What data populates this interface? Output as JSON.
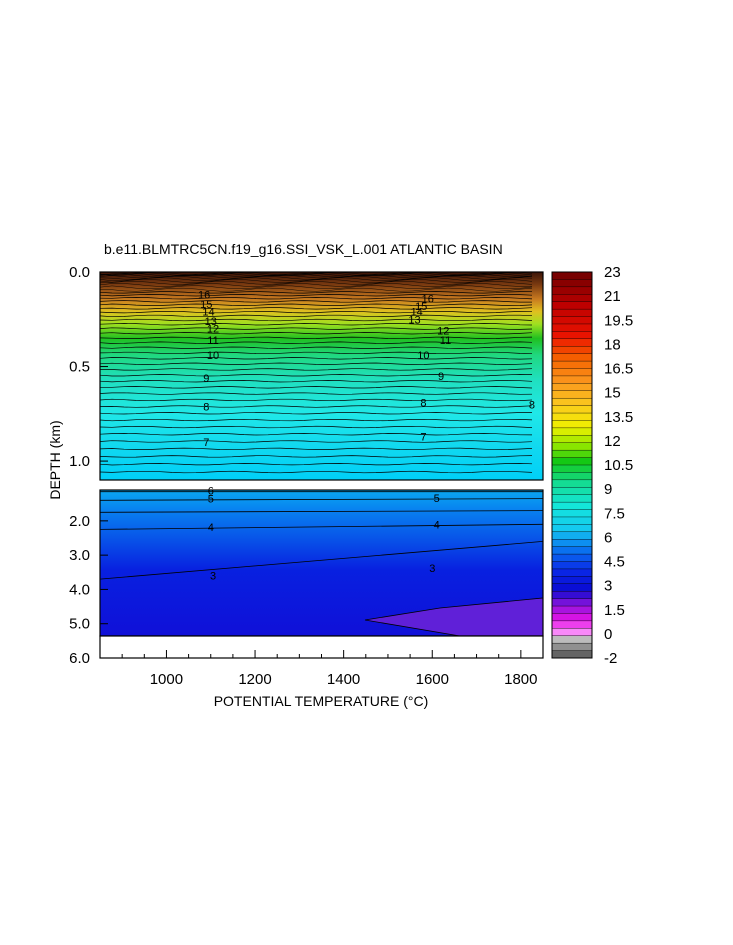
{
  "chart_data": {
    "type": "heatmap",
    "title": "b.e11.BLMTRC5CN.f19_g16.SSI_VSK_L.001 ATLANTIC BASIN",
    "xlabel": "POTENTIAL TEMPERATURE (°C)",
    "ylabel": "DEPTH (km)",
    "x_ticks": [
      "1000",
      "1200",
      "1400",
      "1600",
      "1800"
    ],
    "xlim": [
      850,
      1850
    ],
    "y_ticks_upper": [
      "0.0",
      "0.5",
      "1.0"
    ],
    "ylim_upper": [
      0.0,
      1.1
    ],
    "y_ticks_lower": [
      "2.0",
      "3.0",
      "4.0",
      "5.0",
      "6.0"
    ],
    "ylim_lower": [
      1.1,
      6.0
    ],
    "colorbar": {
      "labels": [
        "23",
        "21",
        "19.5",
        "18",
        "16.5",
        "15",
        "13.5",
        "12",
        "10.5",
        "9",
        "7.5",
        "6",
        "4.5",
        "3",
        "1.5",
        "0",
        "-2"
      ],
      "min": -2,
      "max": 23
    },
    "contour_labels_upper": [
      {
        "text": "16",
        "x": 1085,
        "depth": 0.12
      },
      {
        "text": "15",
        "x": 1090,
        "depth": 0.17
      },
      {
        "text": "14",
        "x": 1095,
        "depth": 0.21
      },
      {
        "text": "13",
        "x": 1100,
        "depth": 0.26
      },
      {
        "text": "12",
        "x": 1105,
        "depth": 0.3
      },
      {
        "text": "11",
        "x": 1105,
        "depth": 0.36
      },
      {
        "text": "10",
        "x": 1105,
        "depth": 0.44
      },
      {
        "text": "9",
        "x": 1090,
        "depth": 0.56
      },
      {
        "text": "8",
        "x": 1090,
        "depth": 0.71
      },
      {
        "text": "7",
        "x": 1090,
        "depth": 0.9
      },
      {
        "text": "16",
        "x": 1590,
        "depth": 0.14
      },
      {
        "text": "15",
        "x": 1575,
        "depth": 0.18
      },
      {
        "text": "14",
        "x": 1565,
        "depth": 0.21
      },
      {
        "text": "13",
        "x": 1560,
        "depth": 0.25
      },
      {
        "text": "12",
        "x": 1625,
        "depth": 0.31
      },
      {
        "text": "11",
        "x": 1630,
        "depth": 0.36
      },
      {
        "text": "10",
        "x": 1580,
        "depth": 0.44
      },
      {
        "text": "9",
        "x": 1620,
        "depth": 0.55
      },
      {
        "text": "8",
        "x": 1580,
        "depth": 0.69
      },
      {
        "text": "7",
        "x": 1580,
        "depth": 0.87
      },
      {
        "text": "8",
        "x": 1825,
        "depth": 0.7
      }
    ],
    "contour_labels_lower": [
      {
        "text": "6",
        "x": 1100,
        "depth": 1.11
      },
      {
        "text": "5",
        "x": 1100,
        "depth": 1.35
      },
      {
        "text": "5",
        "x": 1610,
        "depth": 1.33
      },
      {
        "text": "4",
        "x": 1100,
        "depth": 2.18
      },
      {
        "text": "4",
        "x": 1610,
        "depth": 2.1
      },
      {
        "text": "3",
        "x": 1105,
        "depth": 3.6
      },
      {
        "text": "3",
        "x": 1600,
        "depth": 3.38
      }
    ]
  }
}
